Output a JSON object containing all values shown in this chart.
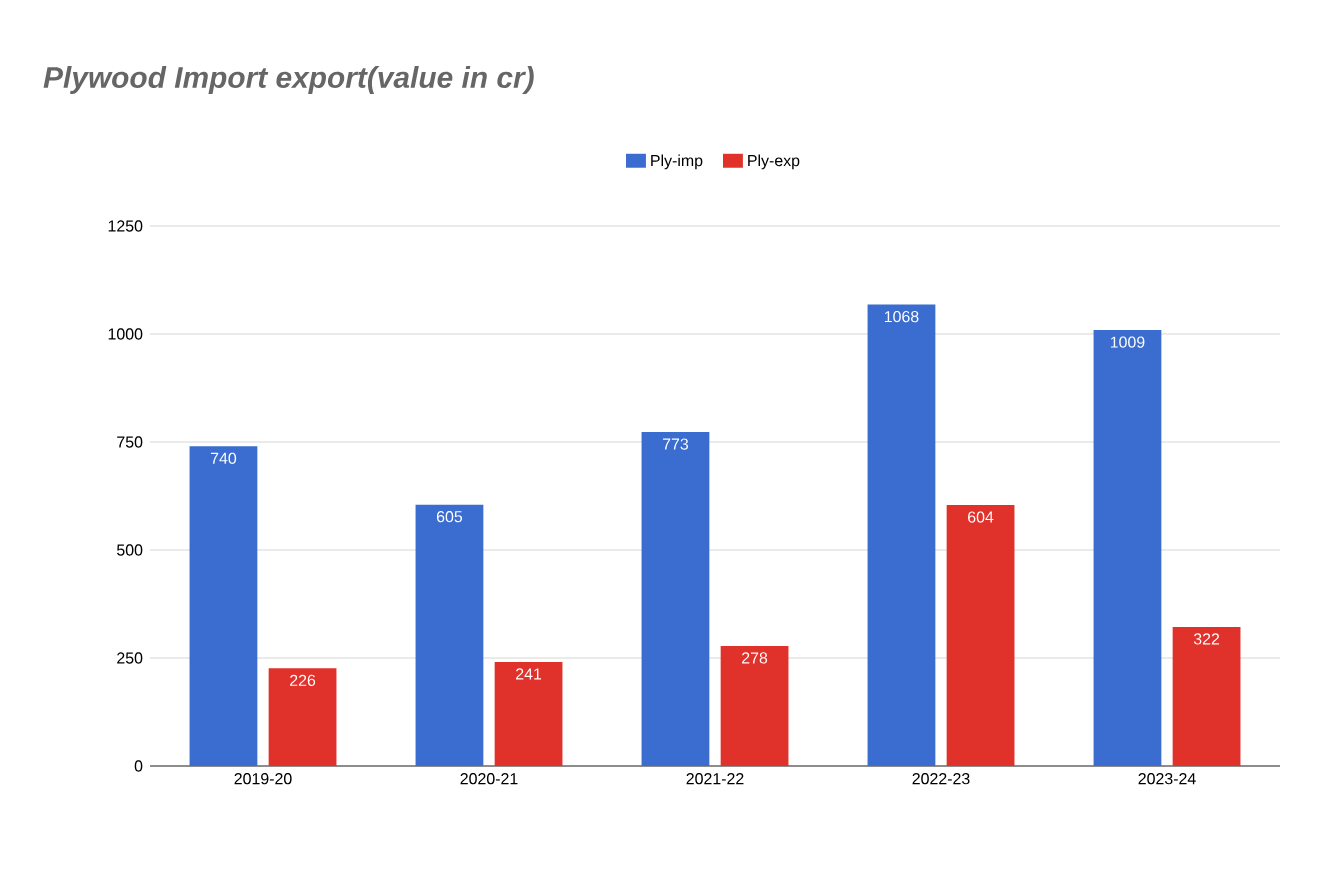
{
  "chart_data": {
    "type": "bar",
    "title": "Plywood Import export(value in cr)",
    "categories": [
      "2019-20",
      "2020-21",
      "2021-22",
      "2022-23",
      "2023-24"
    ],
    "series": [
      {
        "name": "Ply-imp",
        "color": "#3b6cd0",
        "values": [
          740,
          605,
          773,
          1068,
          1009
        ]
      },
      {
        "name": "Ply-exp",
        "color": "#e0312b",
        "values": [
          226,
          241,
          278,
          604,
          322
        ]
      }
    ],
    "ylim": [
      0,
      1250
    ],
    "yticks": [
      0,
      250,
      500,
      750,
      1000,
      1250
    ],
    "grid": "y",
    "legend": "top",
    "data_labels": true
  }
}
